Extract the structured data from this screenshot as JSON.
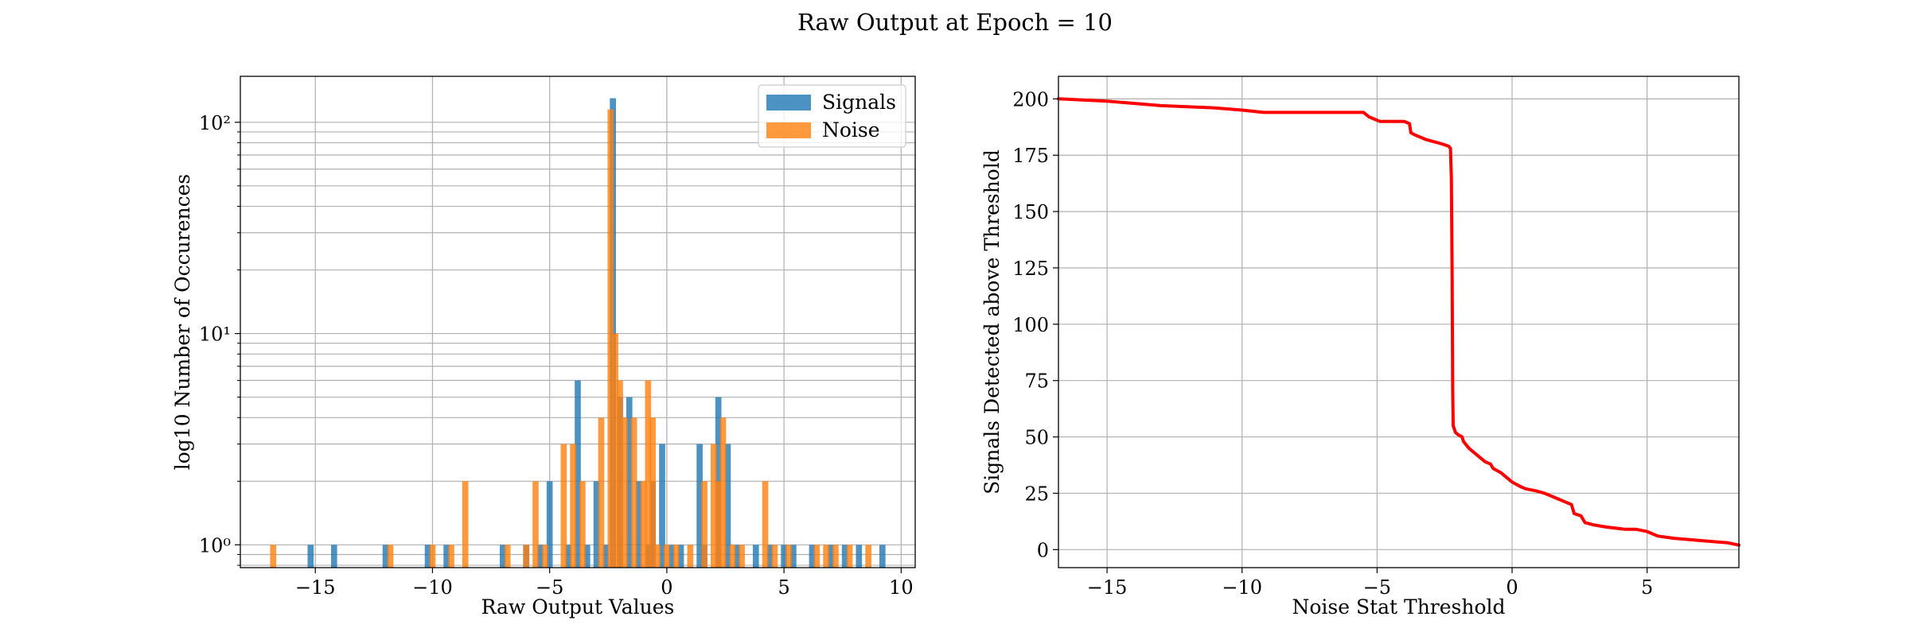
{
  "figure": {
    "title": "Raw Output at Epoch = 10"
  },
  "chart_data": [
    {
      "type": "bar",
      "subtype": "histogram",
      "xlabel": "Raw Output Values",
      "ylabel": "log10 Number of Occurences",
      "yscale": "log",
      "xlim": [
        -18.2,
        10.6
      ],
      "ylim": [
        0.78,
        165
      ],
      "xticks": [
        -15,
        -10,
        -5,
        0,
        5,
        10
      ],
      "xtick_labels": [
        "−15",
        "−10",
        "−5",
        "0",
        "5",
        "10"
      ],
      "yticks": [
        1,
        10,
        100
      ],
      "ytick_labels": [
        "10⁰",
        "10¹",
        "10²"
      ],
      "grid": true,
      "legend_position": "top-right",
      "bar_width": 0.26,
      "series": [
        {
          "name": "Signals",
          "color": "#1f77b4",
          "bins": [
            [
              -15.2,
              1
            ],
            [
              -14.2,
              1
            ],
            [
              -12.0,
              1
            ],
            [
              -10.2,
              1
            ],
            [
              -9.4,
              1
            ],
            [
              -7.0,
              1
            ],
            [
              -6.0,
              1
            ],
            [
              -5.4,
              1
            ],
            [
              -5.0,
              2
            ],
            [
              -4.2,
              1
            ],
            [
              -3.8,
              6
            ],
            [
              -3.4,
              1
            ],
            [
              -3.0,
              2
            ],
            [
              -2.6,
              1
            ],
            [
              -2.3,
              130
            ],
            [
              -2.0,
              5
            ],
            [
              -1.6,
              5
            ],
            [
              -1.2,
              2
            ],
            [
              -0.8,
              1
            ],
            [
              -0.6,
              2
            ],
            [
              -0.2,
              3
            ],
            [
              0.2,
              1
            ],
            [
              0.6,
              1
            ],
            [
              1.4,
              3
            ],
            [
              1.6,
              1
            ],
            [
              2.2,
              5
            ],
            [
              2.6,
              3
            ],
            [
              3.0,
              1
            ],
            [
              3.8,
              1
            ],
            [
              4.4,
              1
            ],
            [
              5.0,
              1
            ],
            [
              5.4,
              1
            ],
            [
              6.2,
              1
            ],
            [
              7.0,
              1
            ],
            [
              7.6,
              1
            ],
            [
              8.2,
              1
            ],
            [
              9.2,
              1
            ]
          ]
        },
        {
          "name": "Noise",
          "color": "#ff7f0e",
          "bins": [
            [
              -16.8,
              1
            ],
            [
              -11.8,
              1
            ],
            [
              -10.0,
              1
            ],
            [
              -9.2,
              1
            ],
            [
              -8.6,
              2
            ],
            [
              -6.8,
              1
            ],
            [
              -6.0,
              1
            ],
            [
              -5.6,
              2
            ],
            [
              -5.2,
              1
            ],
            [
              -4.4,
              3
            ],
            [
              -4.0,
              3
            ],
            [
              -3.6,
              2
            ],
            [
              -2.8,
              4
            ],
            [
              -2.4,
              115
            ],
            [
              -2.2,
              10
            ],
            [
              -2.0,
              6
            ],
            [
              -1.8,
              4
            ],
            [
              -1.4,
              4
            ],
            [
              -1.0,
              2
            ],
            [
              -0.8,
              6
            ],
            [
              -0.6,
              4
            ],
            [
              -0.4,
              1
            ],
            [
              0.0,
              1
            ],
            [
              0.4,
              1
            ],
            [
              1.0,
              1
            ],
            [
              1.6,
              2
            ],
            [
              2.0,
              3
            ],
            [
              2.2,
              2
            ],
            [
              2.4,
              4
            ],
            [
              2.8,
              1
            ],
            [
              3.2,
              1
            ],
            [
              4.2,
              2
            ],
            [
              4.6,
              1
            ],
            [
              5.2,
              1
            ],
            [
              6.4,
              1
            ],
            [
              6.8,
              1
            ],
            [
              7.2,
              1
            ],
            [
              7.8,
              1
            ],
            [
              8.6,
              1
            ]
          ]
        }
      ]
    },
    {
      "type": "line",
      "xlabel": "Noise Stat Threshold",
      "ylabel": "Signals Detected above Threshold",
      "xlim": [
        -16.8,
        8.4
      ],
      "ylim": [
        -8,
        210
      ],
      "xticks": [
        -15,
        -10,
        -5,
        0,
        5
      ],
      "xtick_labels": [
        "−15",
        "−10",
        "−5",
        "0",
        "5"
      ],
      "yticks": [
        0,
        25,
        50,
        75,
        100,
        125,
        150,
        175,
        200
      ],
      "ytick_labels": [
        "0",
        "25",
        "50",
        "75",
        "100",
        "125",
        "150",
        "175",
        "200"
      ],
      "grid": true,
      "series": [
        {
          "color": "#ff0000",
          "x": [
            -16.8,
            -15,
            -13,
            -11,
            -10,
            -9.2,
            -8,
            -7,
            -6,
            -5.5,
            -5.3,
            -5.1,
            -4.9,
            -4.6,
            -4.3,
            -4.0,
            -3.8,
            -3.75,
            -3.6,
            -3.4,
            -3.2,
            -2.9,
            -2.6,
            -2.35,
            -2.28,
            -2.25,
            -2.22,
            -2.2,
            -2.18,
            -2.1,
            -2.0,
            -1.85,
            -1.8,
            -1.6,
            -1.3,
            -1.0,
            -0.8,
            -0.7,
            -0.4,
            -0.3,
            0.0,
            0.3,
            0.5,
            0.9,
            1.2,
            1.6,
            2.0,
            2.2,
            2.3,
            2.55,
            2.7,
            3.0,
            3.5,
            4.2,
            4.6,
            5.0,
            5.4,
            6.0,
            7.0,
            8.0,
            8.4
          ],
          "y": [
            200,
            199,
            197,
            196,
            195,
            194,
            194,
            194,
            194,
            194,
            192,
            191,
            190,
            190,
            190,
            190,
            189,
            185,
            184,
            183,
            182,
            181,
            180,
            179,
            178,
            165,
            120,
            70,
            55,
            52,
            51,
            50,
            48,
            45,
            42,
            39,
            38,
            36,
            34,
            33,
            30,
            28,
            27,
            26,
            25,
            23,
            21,
            20,
            16,
            15,
            12,
            11,
            10,
            9,
            9,
            8,
            6,
            5,
            4,
            3,
            2
          ]
        }
      ]
    }
  ]
}
